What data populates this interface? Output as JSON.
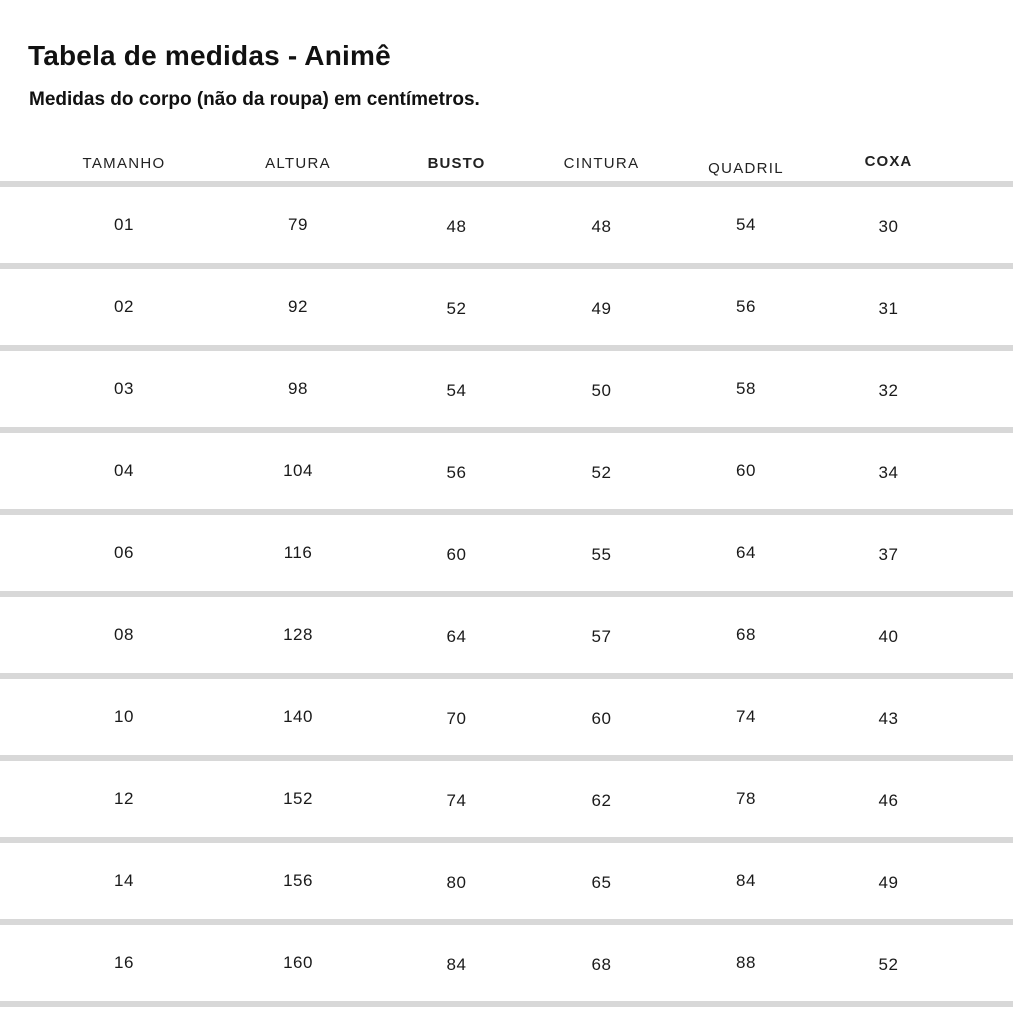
{
  "page": {
    "title": "Tabela de medidas - Animê",
    "subtitle": "Medidas do corpo (não da roupa) em centímetros."
  },
  "table": {
    "columns": [
      "TAMANHO",
      "ALTURA",
      "BUSTO",
      "CINTURA",
      "QUADRIL",
      "COXA"
    ],
    "rows": [
      [
        "01",
        "79",
        "48",
        "48",
        "54",
        "30"
      ],
      [
        "02",
        "92",
        "52",
        "49",
        "56",
        "31"
      ],
      [
        "03",
        "98",
        "54",
        "50",
        "58",
        "32"
      ],
      [
        "04",
        "104",
        "56",
        "52",
        "60",
        "34"
      ],
      [
        "06",
        "116",
        "60",
        "55",
        "64",
        "37"
      ],
      [
        "08",
        "128",
        "64",
        "57",
        "68",
        "40"
      ],
      [
        "10",
        "140",
        "70",
        "60",
        "74",
        "43"
      ],
      [
        "12",
        "152",
        "74",
        "62",
        "78",
        "46"
      ],
      [
        "14",
        "156",
        "80",
        "65",
        "84",
        "49"
      ],
      [
        "16",
        "160",
        "84",
        "68",
        "88",
        "52"
      ]
    ]
  },
  "chart_data": {
    "type": "table",
    "title": "Tabela de medidas - Animê",
    "subtitle": "Medidas do corpo (não da roupa) em centímetros.",
    "columns": [
      "TAMANHO",
      "ALTURA",
      "BUSTO",
      "CINTURA",
      "QUADRIL",
      "COXA"
    ],
    "rows": [
      [
        "01",
        "79",
        "48",
        "48",
        "54",
        "30"
      ],
      [
        "02",
        "92",
        "52",
        "49",
        "56",
        "31"
      ],
      [
        "03",
        "98",
        "54",
        "50",
        "58",
        "32"
      ],
      [
        "04",
        "104",
        "56",
        "52",
        "60",
        "34"
      ],
      [
        "06",
        "116",
        "60",
        "55",
        "64",
        "37"
      ],
      [
        "08",
        "128",
        "64",
        "57",
        "68",
        "40"
      ],
      [
        "10",
        "140",
        "70",
        "60",
        "74",
        "43"
      ],
      [
        "12",
        "152",
        "74",
        "62",
        "78",
        "46"
      ],
      [
        "14",
        "156",
        "80",
        "65",
        "84",
        "49"
      ],
      [
        "16",
        "160",
        "84",
        "68",
        "88",
        "52"
      ]
    ]
  },
  "colors": {
    "background": "#ffffff",
    "text": "#1a1a1a",
    "divider": "#d8d8d8"
  }
}
